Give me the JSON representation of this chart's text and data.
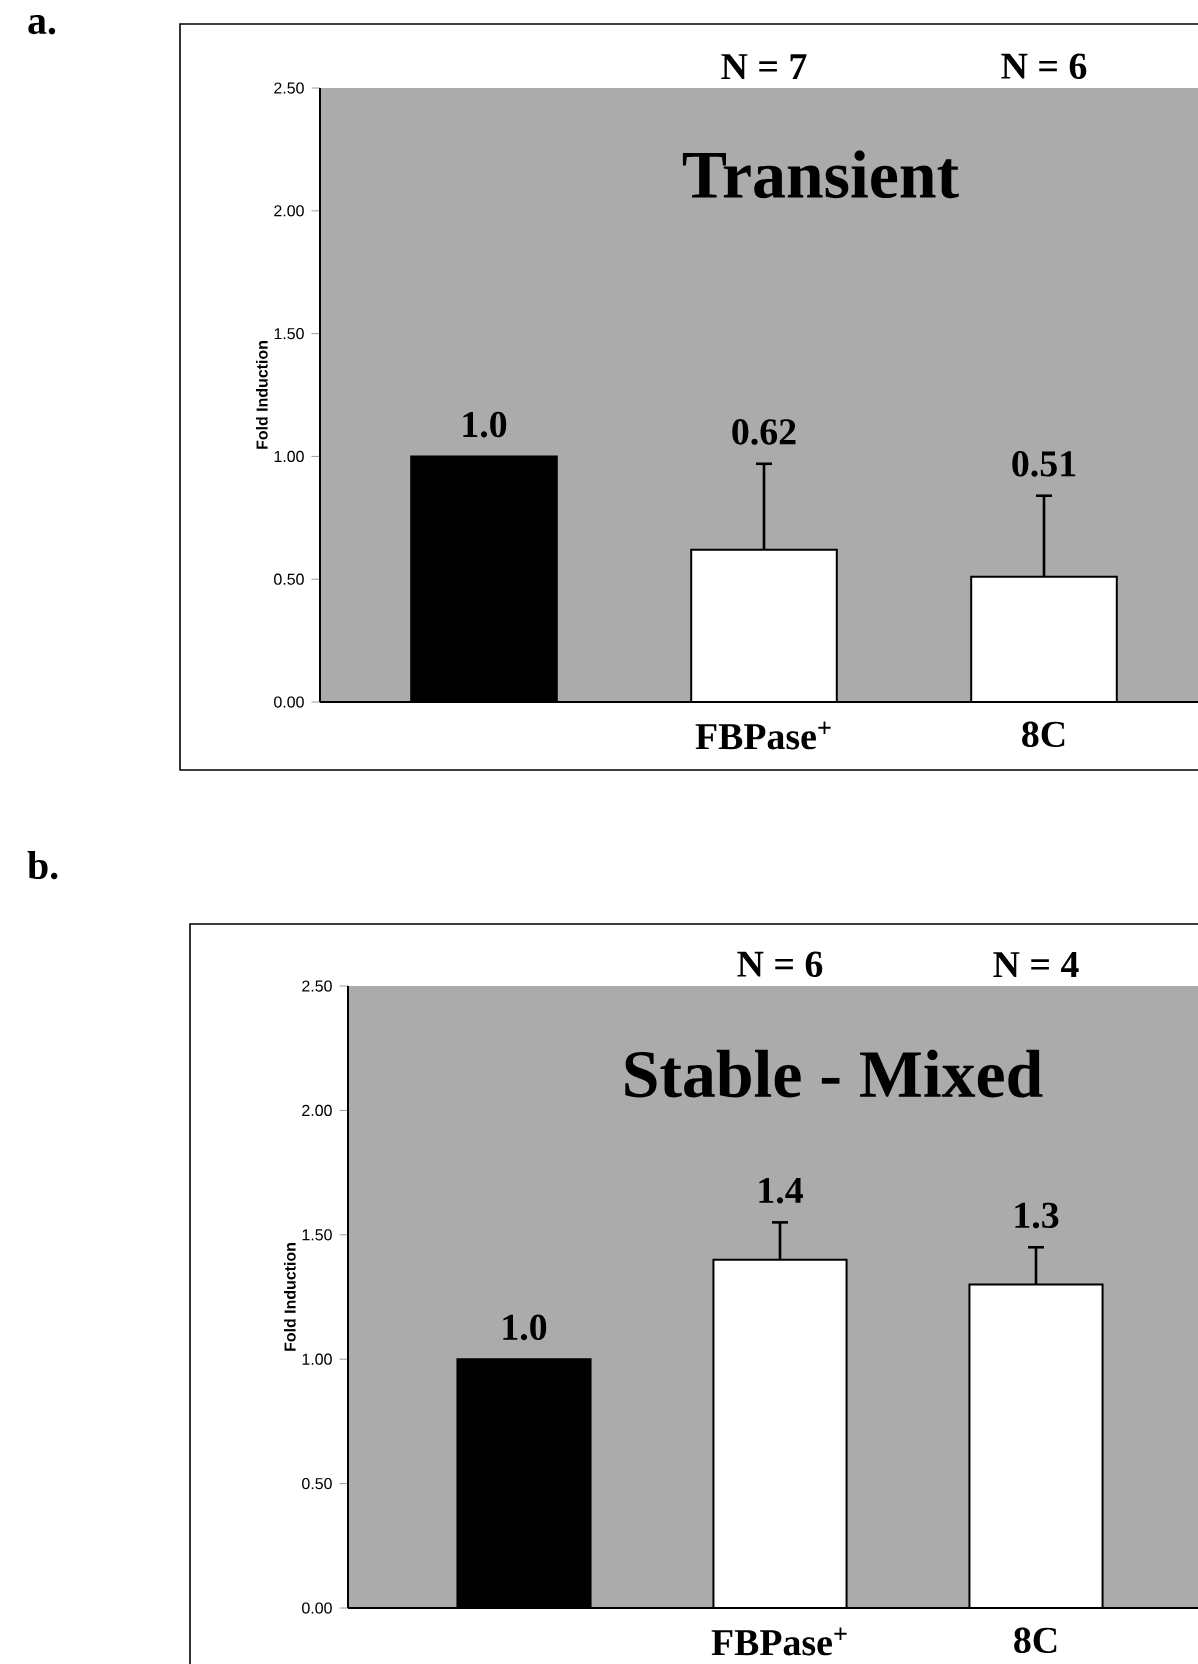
{
  "chart_data": [
    {
      "type": "bar",
      "title": "Transient",
      "ylabel": "Fold Induction",
      "categories": [
        null,
        "FBPase$^{+}$",
        "8C"
      ],
      "values": [
        1.0,
        0.62,
        0.51
      ],
      "colors": [
        "#000000",
        "#ffffff",
        "#ffffff"
      ],
      "errors": [
        null,
        [
          0.62,
          0.97
        ],
        [
          0.51,
          0.84
        ]
      ],
      "value_labels": [
        "1.0",
        "0.62",
        "0.51"
      ],
      "ylim": [
        0,
        2.5
      ],
      "yticks": [
        {
          "value": 0,
          "label": "0.00"
        },
        {
          "value": 0.5,
          "label": "0.50"
        },
        {
          "value": 1,
          "label": "1.00"
        },
        {
          "value": 1.5,
          "label": "1.50"
        },
        {
          "value": 2,
          "label": "2.00"
        },
        {
          "value": 2.5,
          "label": "2.50"
        }
      ],
      "annotations": [
        "a.",
        "N = 7",
        "N = 6"
      ]
    },
    {
      "type": "bar",
      "title": "Stable - Mixed",
      "ylabel": "Fold Induction",
      "categories": [
        null,
        "FBPase$^{+}$",
        "8C"
      ],
      "values": [
        1.0,
        1.4,
        1.3
      ],
      "colors": [
        "#000000",
        "#ffffff",
        "#ffffff"
      ],
      "errors": [
        null,
        [
          1.4,
          1.55
        ],
        [
          1.3,
          1.45
        ]
      ],
      "value_labels": [
        "1.0",
        "1.4",
        "1.3"
      ],
      "ylim": [
        0,
        2.5
      ],
      "yticks": [
        {
          "value": 0,
          "label": "0.00"
        },
        {
          "value": 0.5,
          "label": "0.50"
        },
        {
          "value": 1,
          "label": "1.00"
        },
        {
          "value": 1.5,
          "label": "1.50"
        },
        {
          "value": 2,
          "label": "2.00"
        },
        {
          "value": 2.5,
          "label": "2.50"
        }
      ],
      "annotations": [
        "b.",
        "N = 6",
        "N = 4"
      ]
    }
  ]
}
